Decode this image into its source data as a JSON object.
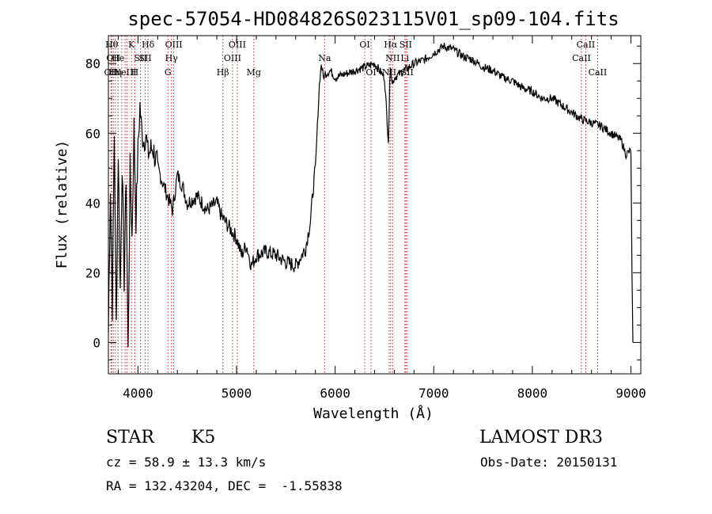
{
  "chart_data": {
    "type": "line",
    "title": "spec-57054-HD084826S023115V01_sp09-104.fits",
    "xlabel": "Wavelength (Å)",
    "ylabel": "Flux (relative)",
    "xlim": [
      3700,
      9100
    ],
    "ylim": [
      -9,
      88
    ],
    "xticks": [
      4000,
      5000,
      6000,
      7000,
      8000,
      9000
    ],
    "yticks": [
      0,
      20,
      40,
      60,
      80
    ],
    "series": [
      {
        "color": "#000000",
        "x": [
          3700,
          3720,
          3740,
          3760,
          3780,
          3800,
          3820,
          3840,
          3860,
          3880,
          3900,
          3920,
          3940,
          3960,
          3980,
          4000,
          4020,
          4040,
          4060,
          4080,
          4100,
          4150,
          4200,
          4250,
          4300,
          4350,
          4400,
          4450,
          4500,
          4600,
          4700,
          4800,
          4850,
          4900,
          4950,
          5000,
          5050,
          5100,
          5150,
          5200,
          5300,
          5400,
          5500,
          5600,
          5700,
          5750,
          5780,
          5800,
          5820,
          5840,
          5860,
          5880,
          5900,
          5950,
          6000,
          6100,
          6200,
          6300,
          6400,
          6500,
          6540,
          6560,
          6580,
          6600,
          6700,
          6800,
          6900,
          7000,
          7100,
          7200,
          7300,
          7400,
          7500,
          7600,
          7700,
          7800,
          7900,
          8000,
          8100,
          8200,
          8300,
          8400,
          8500,
          8600,
          8700,
          8800,
          8900,
          8950,
          9000,
          9010,
          9020
        ],
        "y": [
          3,
          45,
          10,
          60,
          5,
          55,
          15,
          52,
          18,
          48,
          -3,
          50,
          30,
          62,
          35,
          55,
          68,
          60,
          58,
          60,
          54,
          56,
          50,
          46,
          42,
          38,
          48,
          45,
          40,
          42,
          38,
          40,
          36,
          34,
          32,
          30,
          25,
          28,
          22,
          25,
          26,
          25,
          23,
          22,
          27,
          35,
          45,
          50,
          62,
          74,
          80,
          76,
          77,
          78,
          76,
          77,
          78,
          79,
          80,
          76,
          58,
          80,
          74,
          76,
          78,
          80,
          81,
          83,
          85,
          84,
          82,
          81,
          79,
          78,
          76,
          75,
          73,
          72,
          70,
          70,
          68,
          66,
          64,
          63,
          62,
          60,
          58,
          54,
          55,
          20,
          0
        ]
      }
    ],
    "lines": [
      {
        "x": 3734,
        "label": "Hθ",
        "row": 0
      },
      {
        "x": 3750,
        "label": "OII",
        "row": 1
      },
      {
        "x": 3727,
        "label": "OII",
        "row": 2
      },
      {
        "x": 3771,
        "label": "Hη",
        "row": 2
      },
      {
        "x": 3798,
        "label": "He",
        "row": 1
      },
      {
        "x": 3835,
        "label": "",
        "row": 3
      },
      {
        "x": 3869,
        "label": "NeIII",
        "row": 2
      },
      {
        "x": 3889,
        "label": "",
        "row": 3
      },
      {
        "x": 3934,
        "label": "K",
        "row": 0
      },
      {
        "x": 3968,
        "label": "H",
        "row": 2
      },
      {
        "x": 4026,
        "label": "SII",
        "row": 1
      },
      {
        "x": 4102,
        "label": "Hδ",
        "row": 0
      },
      {
        "x": 4074,
        "label": "SII",
        "row": 1
      },
      {
        "x": 4304,
        "label": "G",
        "row": 2
      },
      {
        "x": 4340,
        "label": "Hγ",
        "row": 1
      },
      {
        "x": 4363,
        "label": "OIII",
        "row": 0
      },
      {
        "x": 4861,
        "label": "Hβ",
        "row": 2
      },
      {
        "x": 4959,
        "label": "OIII",
        "row": 1
      },
      {
        "x": 5007,
        "label": "OIII",
        "row": 0
      },
      {
        "x": 5175,
        "label": "Mg",
        "row": 2
      },
      {
        "x": 5893,
        "label": "Na",
        "row": 1
      },
      {
        "x": 6300,
        "label": "OI",
        "row": 0
      },
      {
        "x": 6364,
        "label": "OI",
        "row": 2
      },
      {
        "x": 6548,
        "label": "NII",
        "row": 2
      },
      {
        "x": 6563,
        "label": "Hα",
        "row": 0
      },
      {
        "x": 6583,
        "label": "NII",
        "row": 1
      },
      {
        "x": 6707,
        "label": "Li",
        "row": 1
      },
      {
        "x": 6716,
        "label": "SII",
        "row": 0
      },
      {
        "x": 6731,
        "label": "SII",
        "row": 2
      },
      {
        "x": 8498,
        "label": "CaII",
        "row": 1
      },
      {
        "x": 8542,
        "label": "CaII",
        "row": 0
      },
      {
        "x": 8662,
        "label": "CaII",
        "row": 2
      }
    ]
  },
  "info": {
    "class_label": "STAR",
    "subclass": "K5",
    "survey": "LAMOST DR3",
    "cz": "cz = 58.9 ± 13.3 km/s",
    "obs_date": "Obs-Date: 20150131",
    "coords": "RA = 132.43204, DEC =  -1.55838"
  }
}
